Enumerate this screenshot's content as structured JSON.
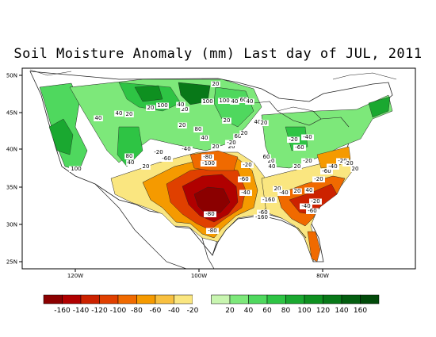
{
  "title": "Soil Moisture Anomaly (mm) Last day of JUL, 2011",
  "lat_labels": [
    "50N",
    "45N",
    "40N",
    "35N",
    "30N",
    "25N"
  ],
  "lon_labels": [
    "120W",
    "100W",
    "80W"
  ],
  "contour_labels": [
    "100",
    "40",
    "40",
    "20",
    "100",
    "20",
    "20",
    "40",
    "20",
    "100",
    "40",
    "100",
    "60",
    "40",
    "20",
    "80",
    "20",
    "40",
    "60",
    "40",
    "20",
    "20",
    "20",
    "20",
    "100",
    "80",
    "40",
    "20",
    "-20",
    "-60",
    "-40",
    "-80",
    "-100",
    "-20",
    "-20",
    "-60",
    "20",
    "40",
    "20",
    "60",
    "-20",
    "-40",
    "-60",
    "-20",
    "20",
    "-40",
    "-60",
    "-80",
    "-80",
    "-160",
    "-160",
    "-40",
    "20",
    "40",
    "-20",
    "-60",
    "-40",
    "-20",
    "-20",
    "20",
    "-20",
    "-40",
    "-60"
  ],
  "colorbar": {
    "neg_colors": [
      "#8b0000",
      "#b00000",
      "#cc2200",
      "#e04000",
      "#f06a00",
      "#f59a00",
      "#f8c040",
      "#fae680"
    ],
    "pos_colors": [
      "#c8f5b0",
      "#7de87a",
      "#4fd85e",
      "#2ec444",
      "#1aa830",
      "#0e9020",
      "#087818",
      "#045e10",
      "#024a0a"
    ],
    "labels": [
      "-160",
      "-140",
      "-120",
      "-100",
      "-80",
      "-60",
      "-40",
      "-20",
      "20",
      "40",
      "60",
      "80",
      "100",
      "120",
      "140",
      "160"
    ]
  }
}
